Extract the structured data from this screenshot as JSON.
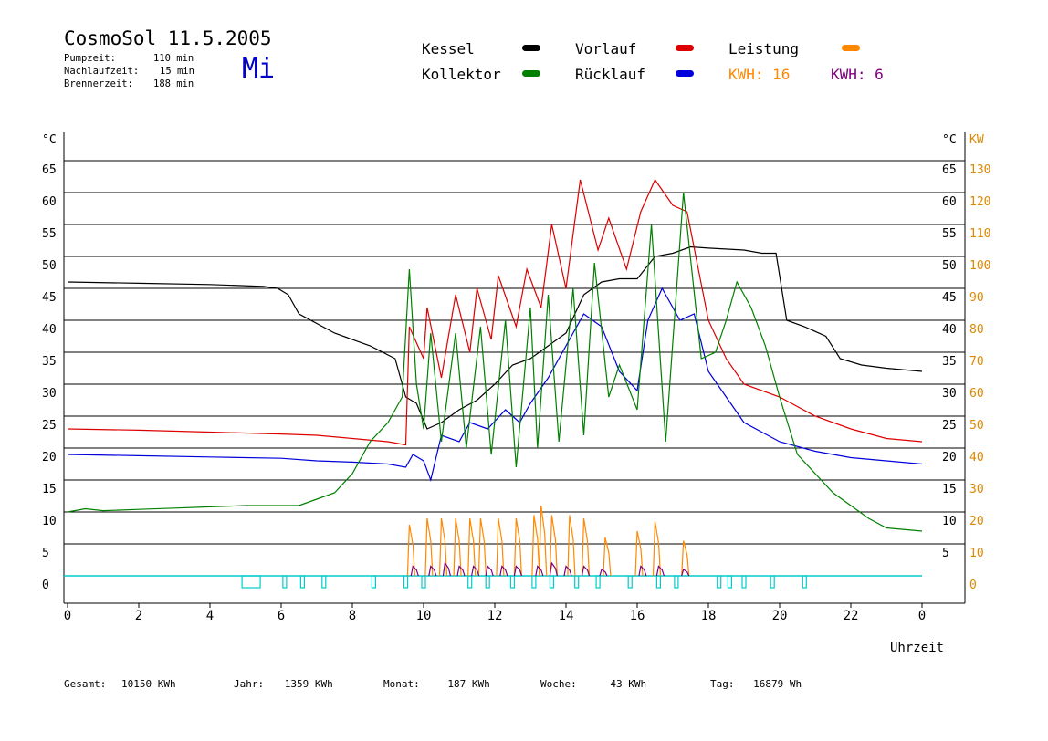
{
  "header": {
    "title": "CosmoSol 11.5.2005",
    "weekday": "Mi",
    "stats": [
      {
        "label": "Pumpzeit:",
        "value": "110 min"
      },
      {
        "label": "Nachlaufzeit:",
        "value": "15 min"
      },
      {
        "label": "Brennerzeit:",
        "value": "188 min"
      }
    ]
  },
  "legend": {
    "items": [
      {
        "label": "Kessel",
        "color": "#000000"
      },
      {
        "label": "Vorlauf",
        "color": "#dd0000"
      },
      {
        "label": "Leistung",
        "color": "#ff8800"
      },
      {
        "label": "Kollektor",
        "color": "#008000"
      },
      {
        "label": "Rücklauf",
        "color": "#0000dd"
      }
    ],
    "kwh": [
      {
        "label": "KWH: 16",
        "color": "#ff8800"
      },
      {
        "label": "KWH: 6",
        "color": "#800080"
      }
    ]
  },
  "footer": [
    {
      "label": "Gesamt:",
      "value": "10150 KWh"
    },
    {
      "label": "Jahr:",
      "value": "1359 KWh"
    },
    {
      "label": "Monat:",
      "value": "187 KWh"
    },
    {
      "label": "Woche:",
      "value": "43 KWh"
    },
    {
      "label": "Tag:",
      "value": "16879 Wh"
    }
  ],
  "chart_data": {
    "type": "line",
    "xlabel": "Uhrzeit",
    "xlim": [
      0,
      24
    ],
    "x_ticks": [
      "0",
      "2",
      "4",
      "6",
      "8",
      "10",
      "12",
      "14",
      "16",
      "18",
      "20",
      "22",
      "0"
    ],
    "y_left": {
      "unit": "°C",
      "ylim": [
        0,
        65
      ],
      "ticks": [
        0,
        5,
        10,
        15,
        20,
        25,
        30,
        35,
        40,
        45,
        50,
        55,
        60,
        65
      ]
    },
    "y_right_temp": {
      "unit": "°C",
      "ticks": [
        5,
        10,
        15,
        20,
        25,
        30,
        35,
        40,
        45,
        50,
        55,
        60,
        65
      ]
    },
    "y_right_power": {
      "unit": "KW",
      "ylim": [
        0,
        130
      ],
      "ticks": [
        0,
        10,
        20,
        30,
        40,
        50,
        60,
        70,
        80,
        90,
        100,
        110,
        120,
        130
      ]
    },
    "grid": "horizontal",
    "series": [
      {
        "name": "Kessel",
        "color": "#000000",
        "points": [
          [
            0,
            46
          ],
          [
            2,
            45.8
          ],
          [
            4,
            45.6
          ],
          [
            5.5,
            45.3
          ],
          [
            5.9,
            45
          ],
          [
            6.2,
            44
          ],
          [
            6.5,
            41
          ],
          [
            7.5,
            38
          ],
          [
            8.5,
            36
          ],
          [
            9.2,
            34
          ],
          [
            9.5,
            28
          ],
          [
            9.8,
            27
          ],
          [
            10.1,
            23
          ],
          [
            10.5,
            24
          ],
          [
            11,
            26
          ],
          [
            11.5,
            27.5
          ],
          [
            12,
            30
          ],
          [
            12.5,
            33
          ],
          [
            13,
            34
          ],
          [
            13.5,
            36
          ],
          [
            14,
            38
          ],
          [
            14.5,
            44
          ],
          [
            15,
            46
          ],
          [
            15.5,
            46.5
          ],
          [
            16,
            46.5
          ],
          [
            16.5,
            50
          ],
          [
            17,
            50.5
          ],
          [
            17.5,
            51.5
          ],
          [
            18,
            51.3
          ],
          [
            19,
            51
          ],
          [
            19.5,
            50.5
          ],
          [
            19.9,
            50.5
          ],
          [
            20.2,
            40
          ],
          [
            20.7,
            39
          ],
          [
            21.3,
            37.5
          ],
          [
            21.7,
            34
          ],
          [
            22.3,
            33
          ],
          [
            23,
            32.5
          ],
          [
            24,
            32
          ]
        ]
      },
      {
        "name": "Vorlauf",
        "color": "#dd0000",
        "points": [
          [
            0,
            23
          ],
          [
            2,
            22.8
          ],
          [
            4,
            22.5
          ],
          [
            6,
            22.2
          ],
          [
            7,
            22
          ],
          [
            8,
            21.5
          ],
          [
            9,
            21
          ],
          [
            9.5,
            20.5
          ],
          [
            9.6,
            39
          ],
          [
            10,
            34
          ],
          [
            10.1,
            42
          ],
          [
            10.5,
            31
          ],
          [
            10.9,
            44
          ],
          [
            11.3,
            35
          ],
          [
            11.5,
            45
          ],
          [
            11.9,
            37
          ],
          [
            12.1,
            47
          ],
          [
            12.6,
            39
          ],
          [
            12.9,
            48
          ],
          [
            13.3,
            42
          ],
          [
            13.6,
            55
          ],
          [
            14,
            45
          ],
          [
            14.4,
            62
          ],
          [
            14.9,
            51
          ],
          [
            15.2,
            56
          ],
          [
            15.7,
            48
          ],
          [
            16.1,
            57
          ],
          [
            16.5,
            62
          ],
          [
            17,
            58
          ],
          [
            17.4,
            57
          ],
          [
            18,
            40
          ],
          [
            18.5,
            34
          ],
          [
            19,
            30
          ],
          [
            20,
            28
          ],
          [
            21,
            25
          ],
          [
            22,
            23
          ],
          [
            23,
            21.5
          ],
          [
            24,
            21
          ]
        ]
      },
      {
        "name": "Rücklauf",
        "color": "#0000dd",
        "points": [
          [
            0,
            19
          ],
          [
            2,
            18.8
          ],
          [
            4,
            18.6
          ],
          [
            6,
            18.4
          ],
          [
            7,
            18
          ],
          [
            8,
            17.8
          ],
          [
            9,
            17.5
          ],
          [
            9.5,
            17
          ],
          [
            9.7,
            19
          ],
          [
            10,
            18
          ],
          [
            10.2,
            15
          ],
          [
            10.5,
            22
          ],
          [
            11,
            21
          ],
          [
            11.3,
            24
          ],
          [
            11.8,
            23
          ],
          [
            12.3,
            26
          ],
          [
            12.7,
            24
          ],
          [
            13,
            27
          ],
          [
            13.5,
            31
          ],
          [
            14,
            36
          ],
          [
            14.5,
            41
          ],
          [
            15,
            39
          ],
          [
            15.5,
            32
          ],
          [
            16,
            29
          ],
          [
            16.3,
            40
          ],
          [
            16.7,
            45
          ],
          [
            17.2,
            40
          ],
          [
            17.6,
            41
          ],
          [
            18,
            32
          ],
          [
            18.5,
            28
          ],
          [
            19,
            24
          ],
          [
            20,
            21
          ],
          [
            21,
            19.5
          ],
          [
            22,
            18.5
          ],
          [
            23,
            18
          ],
          [
            24,
            17.5
          ]
        ]
      },
      {
        "name": "Kollektor",
        "color": "#008000",
        "points": [
          [
            0,
            10
          ],
          [
            0.5,
            10.5
          ],
          [
            1,
            10.2
          ],
          [
            2,
            10.4
          ],
          [
            3,
            10.6
          ],
          [
            4,
            10.8
          ],
          [
            5,
            11
          ],
          [
            6,
            11
          ],
          [
            6.5,
            11
          ],
          [
            7,
            12
          ],
          [
            7.5,
            13
          ],
          [
            8,
            16
          ],
          [
            8.5,
            21
          ],
          [
            9,
            24
          ],
          [
            9.4,
            28
          ],
          [
            9.6,
            48
          ],
          [
            9.8,
            30
          ],
          [
            10,
            23
          ],
          [
            10.2,
            38
          ],
          [
            10.5,
            21
          ],
          [
            10.9,
            38
          ],
          [
            11.2,
            20
          ],
          [
            11.6,
            39
          ],
          [
            11.9,
            19
          ],
          [
            12.3,
            40
          ],
          [
            12.6,
            17
          ],
          [
            13,
            42
          ],
          [
            13.2,
            20
          ],
          [
            13.5,
            44
          ],
          [
            13.8,
            21
          ],
          [
            14.2,
            45
          ],
          [
            14.5,
            22
          ],
          [
            14.8,
            49
          ],
          [
            15.2,
            28
          ],
          [
            15.5,
            33
          ],
          [
            16,
            26
          ],
          [
            16.4,
            55
          ],
          [
            16.8,
            21
          ],
          [
            17.3,
            60
          ],
          [
            17.8,
            34
          ],
          [
            18.2,
            35
          ],
          [
            18.5,
            40
          ],
          [
            18.8,
            46
          ],
          [
            19.2,
            42
          ],
          [
            19.6,
            36
          ],
          [
            20,
            28
          ],
          [
            20.5,
            19
          ],
          [
            21,
            16
          ],
          [
            21.5,
            13
          ],
          [
            22,
            11
          ],
          [
            22.5,
            9
          ],
          [
            23,
            7.5
          ],
          [
            24,
            7
          ]
        ]
      },
      {
        "name": "Leistung",
        "color": "#ff8800",
        "axis": "KW",
        "pulses": [
          [
            9.6,
            16
          ],
          [
            10.1,
            18
          ],
          [
            10.5,
            18
          ],
          [
            10.9,
            18
          ],
          [
            11.3,
            18
          ],
          [
            11.6,
            18
          ],
          [
            12.1,
            18
          ],
          [
            12.6,
            18
          ],
          [
            13.1,
            19
          ],
          [
            13.3,
            22
          ],
          [
            13.6,
            19
          ],
          [
            14.1,
            19
          ],
          [
            14.5,
            18
          ],
          [
            15.1,
            12
          ],
          [
            16.0,
            14
          ],
          [
            16.5,
            17
          ],
          [
            17.3,
            11
          ]
        ]
      },
      {
        "name": "KWH: 6",
        "color": "#800080",
        "axis": "KW",
        "pulses": [
          [
            9.7,
            3
          ],
          [
            10.2,
            3
          ],
          [
            10.6,
            4
          ],
          [
            11.0,
            3
          ],
          [
            11.4,
            3
          ],
          [
            11.8,
            3
          ],
          [
            12.2,
            3
          ],
          [
            12.6,
            3
          ],
          [
            13.2,
            3
          ],
          [
            13.6,
            4
          ],
          [
            14.0,
            3
          ],
          [
            14.5,
            3
          ],
          [
            15.0,
            2
          ],
          [
            16.1,
            3
          ],
          [
            16.6,
            3
          ],
          [
            17.3,
            2
          ]
        ]
      }
    ],
    "pump_markers": {
      "color": "#00cccc",
      "x": [
        4.9,
        6.1,
        6.6,
        7.2,
        8.6,
        9.5,
        10,
        11.3,
        11.8,
        12.5,
        13.1,
        13.6,
        14.3,
        14.9,
        15.8,
        16.6,
        17.1,
        18.3,
        18.6,
        19,
        19.8,
        20.7
      ]
    }
  }
}
